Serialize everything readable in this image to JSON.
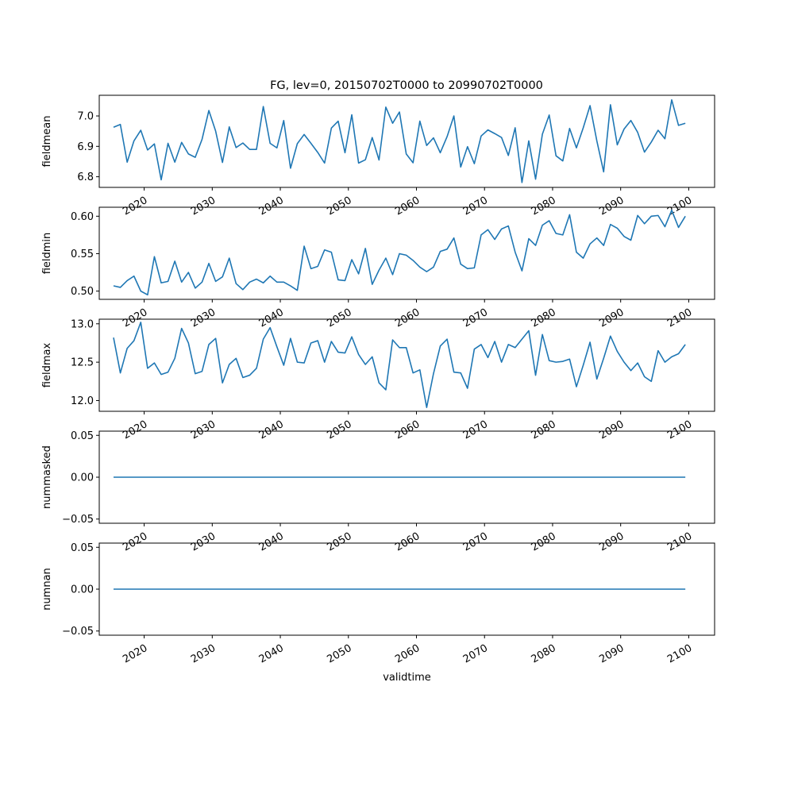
{
  "title": "FG, lev=0, 20150702T0000 to 20990702T0000",
  "line_color": "#1f77b4",
  "chart_data": [
    {
      "type": "line",
      "ylabel": "fieldmean",
      "xlabel": "",
      "xlim": [
        2013.4,
        2103.8
      ],
      "ylim": [
        6.765,
        7.068
      ],
      "yticks": [
        6.8,
        6.9,
        7.0
      ],
      "ytick_labels": [
        "6.8",
        "6.9",
        "7.0"
      ],
      "xticks": [
        2020,
        2030,
        2040,
        2050,
        2060,
        2070,
        2080,
        2090,
        2100
      ],
      "xtick_labels": [
        "2020",
        "2030",
        "2040",
        "2050",
        "2060",
        "2070",
        "2080",
        "2090",
        "2100"
      ],
      "x_start": 2015.5,
      "values": [
        6.963,
        6.972,
        6.848,
        6.918,
        6.953,
        6.888,
        6.908,
        6.79,
        6.91,
        6.848,
        6.913,
        6.875,
        6.864,
        6.923,
        7.018,
        6.95,
        6.847,
        6.964,
        6.896,
        6.911,
        6.89,
        6.89,
        7.031,
        6.91,
        6.895,
        6.985,
        6.828,
        6.909,
        6.939,
        6.91,
        6.88,
        6.845,
        6.96,
        6.983,
        6.879,
        7.004,
        6.845,
        6.856,
        6.929,
        6.855,
        7.029,
        6.976,
        7.013,
        6.875,
        6.846,
        6.983,
        6.903,
        6.928,
        6.879,
        6.932,
        7.0,
        6.832,
        6.899,
        6.843,
        6.934,
        6.954,
        6.942,
        6.929,
        6.87,
        6.961,
        6.781,
        6.918,
        6.792,
        6.94,
        7.003,
        6.869,
        6.852,
        6.959,
        6.895,
        6.961,
        7.034,
        6.918,
        6.816,
        7.037,
        6.905,
        6.957,
        6.985,
        6.946,
        6.881,
        6.914,
        6.953,
        6.925,
        7.053,
        6.969,
        6.976
      ]
    },
    {
      "type": "line",
      "ylabel": "fieldmin",
      "xlabel": "",
      "xlim": [
        2013.4,
        2103.8
      ],
      "ylim": [
        0.489,
        0.612
      ],
      "yticks": [
        0.5,
        0.55,
        0.6
      ],
      "ytick_labels": [
        "0.50",
        "0.55",
        "0.60"
      ],
      "xticks": [
        2020,
        2030,
        2040,
        2050,
        2060,
        2070,
        2080,
        2090,
        2100
      ],
      "xtick_labels": [
        "2020",
        "2030",
        "2040",
        "2050",
        "2060",
        "2070",
        "2080",
        "2090",
        "2100"
      ],
      "x_start": 2015.5,
      "values": [
        0.507,
        0.505,
        0.514,
        0.52,
        0.5,
        0.495,
        0.546,
        0.511,
        0.513,
        0.54,
        0.512,
        0.525,
        0.504,
        0.512,
        0.537,
        0.513,
        0.519,
        0.544,
        0.51,
        0.502,
        0.512,
        0.516,
        0.511,
        0.52,
        0.512,
        0.512,
        0.507,
        0.501,
        0.56,
        0.53,
        0.533,
        0.555,
        0.552,
        0.515,
        0.514,
        0.542,
        0.523,
        0.557,
        0.509,
        0.528,
        0.544,
        0.522,
        0.55,
        0.548,
        0.541,
        0.532,
        0.526,
        0.532,
        0.553,
        0.556,
        0.571,
        0.536,
        0.53,
        0.531,
        0.575,
        0.582,
        0.569,
        0.583,
        0.587,
        0.552,
        0.527,
        0.57,
        0.561,
        0.588,
        0.594,
        0.577,
        0.575,
        0.602,
        0.552,
        0.544,
        0.563,
        0.571,
        0.561,
        0.589,
        0.584,
        0.573,
        0.568,
        0.601,
        0.59,
        0.6,
        0.601,
        0.586,
        0.608,
        0.585,
        0.6
      ]
    },
    {
      "type": "line",
      "ylabel": "fieldmax",
      "xlabel": "",
      "xlim": [
        2013.4,
        2103.8
      ],
      "ylim": [
        11.86,
        13.06
      ],
      "yticks": [
        12.0,
        12.5,
        13.0
      ],
      "ytick_labels": [
        "12.0",
        "12.5",
        "13.0"
      ],
      "xticks": [
        2020,
        2030,
        2040,
        2050,
        2060,
        2070,
        2080,
        2090,
        2100
      ],
      "xtick_labels": [
        "2020",
        "2030",
        "2040",
        "2050",
        "2060",
        "2070",
        "2080",
        "2090",
        "2100"
      ],
      "x_start": 2015.5,
      "values": [
        12.82,
        12.36,
        12.68,
        12.78,
        13.02,
        12.42,
        12.49,
        12.34,
        12.37,
        12.55,
        12.94,
        12.75,
        12.35,
        12.38,
        12.73,
        12.81,
        12.23,
        12.47,
        12.55,
        12.3,
        12.33,
        12.42,
        12.8,
        12.95,
        12.7,
        12.46,
        12.81,
        12.5,
        12.49,
        12.75,
        12.78,
        12.5,
        12.77,
        12.63,
        12.62,
        12.83,
        12.6,
        12.47,
        12.57,
        12.23,
        12.14,
        12.79,
        12.69,
        12.69,
        12.36,
        12.4,
        11.91,
        12.35,
        12.71,
        12.8,
        12.37,
        12.36,
        12.16,
        12.67,
        12.73,
        12.56,
        12.77,
        12.5,
        12.73,
        12.69,
        12.8,
        12.91,
        12.33,
        12.86,
        12.52,
        12.5,
        12.51,
        12.54,
        12.18,
        12.46,
        12.76,
        12.28,
        12.55,
        12.84,
        12.64,
        12.5,
        12.39,
        12.49,
        12.31,
        12.25,
        12.65,
        12.5,
        12.57,
        12.61,
        12.73
      ]
    },
    {
      "type": "line",
      "ylabel": "nummasked",
      "xlabel": "",
      "xlim": [
        2013.4,
        2103.8
      ],
      "ylim": [
        -0.055,
        0.055
      ],
      "yticks": [
        -0.05,
        0.0,
        0.05
      ],
      "ytick_labels": [
        "−0.05",
        "0.00",
        "0.05"
      ],
      "xticks": [
        2020,
        2030,
        2040,
        2050,
        2060,
        2070,
        2080,
        2090,
        2100
      ],
      "xtick_labels": [
        "2020",
        "2030",
        "2040",
        "2050",
        "2060",
        "2070",
        "2080",
        "2090",
        "2100"
      ],
      "x_range": [
        2015.5,
        2099.5
      ],
      "values": [
        0,
        0
      ]
    },
    {
      "type": "line",
      "ylabel": "numnan",
      "xlabel": "validtime",
      "xlim": [
        2013.4,
        2103.8
      ],
      "ylim": [
        -0.055,
        0.055
      ],
      "yticks": [
        -0.05,
        0.0,
        0.05
      ],
      "ytick_labels": [
        "−0.05",
        "0.00",
        "0.05"
      ],
      "xticks": [
        2020,
        2030,
        2040,
        2050,
        2060,
        2070,
        2080,
        2090,
        2100
      ],
      "xtick_labels": [
        "2020",
        "2030",
        "2040",
        "2050",
        "2060",
        "2070",
        "2080",
        "2090",
        "2100"
      ],
      "x_range": [
        2015.5,
        2099.5
      ],
      "values": [
        0,
        0
      ]
    }
  ]
}
